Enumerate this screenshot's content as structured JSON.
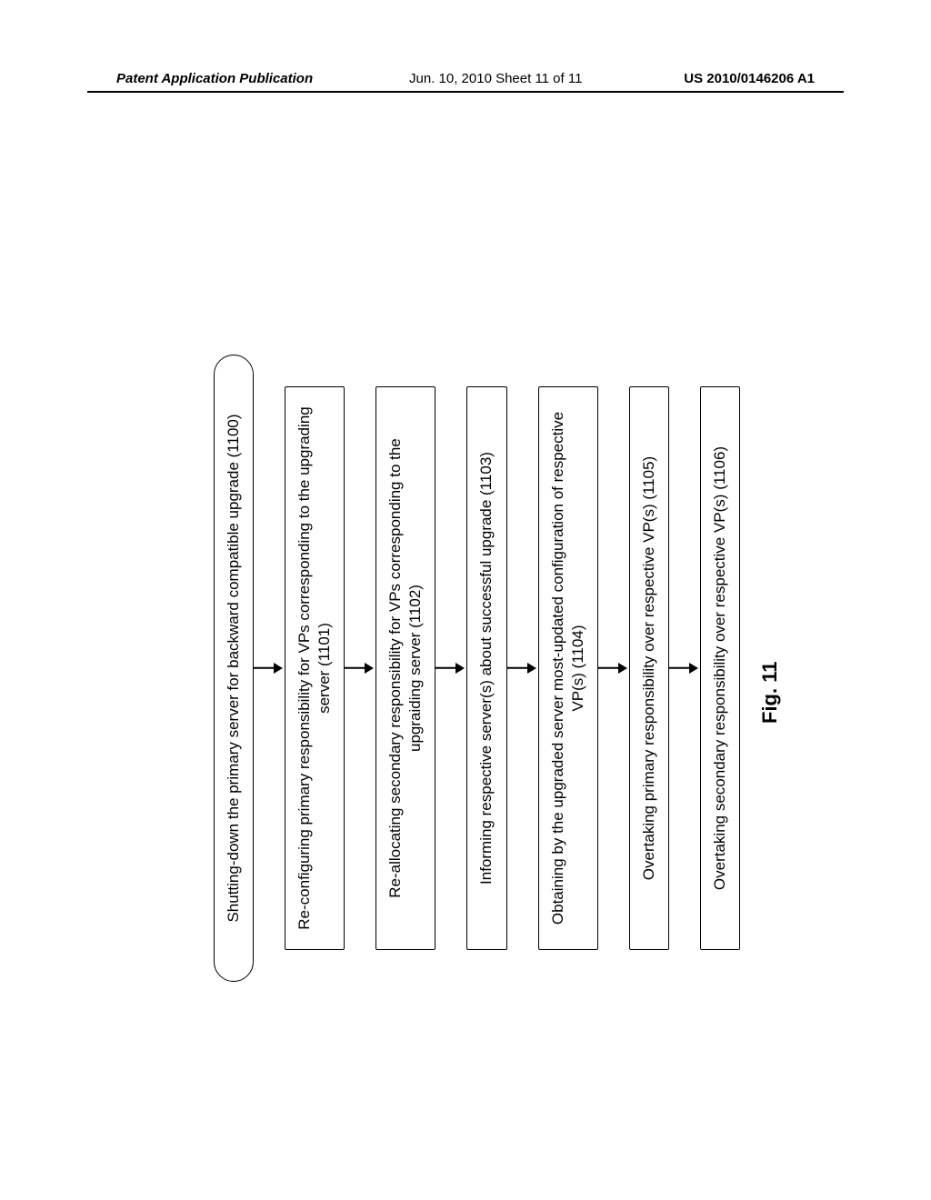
{
  "header": {
    "left": "Patent Application Publication",
    "mid": "Jun. 10, 2010  Sheet 11 of 11",
    "right": "US 2010/0146206 A1"
  },
  "figure": {
    "label": "Fig. 11",
    "label_fontsize": 22,
    "label_fontweight": "bold"
  },
  "flowchart": {
    "type": "flowchart",
    "direction": "top-down-rotated-90ccw",
    "box_border_color": "#000000",
    "box_border_width": 1.5,
    "arrow_color": "#000000",
    "font_family": "Arial",
    "font_size": 17,
    "nodes": [
      {
        "id": "n0",
        "shape": "rounded",
        "text": "Shutting-down the primary server for backward compatible upgrade (1100)"
      },
      {
        "id": "n1",
        "shape": "rect",
        "text": "Re-configuring primary responsibility for VPs corresponding to the upgrading server (1101)"
      },
      {
        "id": "n2",
        "shape": "rect",
        "text": "Re-allocating secondary responsibility for VPs corresponding to the  upgraiding server (1102)"
      },
      {
        "id": "n3",
        "shape": "rect",
        "text": "Informing respective server(s) about successful upgrade (1103)"
      },
      {
        "id": "n4",
        "shape": "rect",
        "text": "Obtaining by the upgraded server most-updated configuration of respective VP(s) (1104)"
      },
      {
        "id": "n5",
        "shape": "rect",
        "text": "Overtaking primary responsibility over respective VP(s) (1105)"
      },
      {
        "id": "n6",
        "shape": "rect",
        "text": "Overtaking secondary responsibility over respective VP(s) (1106)"
      }
    ],
    "edges": [
      {
        "from": "n0",
        "to": "n1"
      },
      {
        "from": "n1",
        "to": "n2"
      },
      {
        "from": "n2",
        "to": "n3"
      },
      {
        "from": "n3",
        "to": "n4"
      },
      {
        "from": "n4",
        "to": "n5"
      },
      {
        "from": "n5",
        "to": "n6"
      }
    ]
  }
}
